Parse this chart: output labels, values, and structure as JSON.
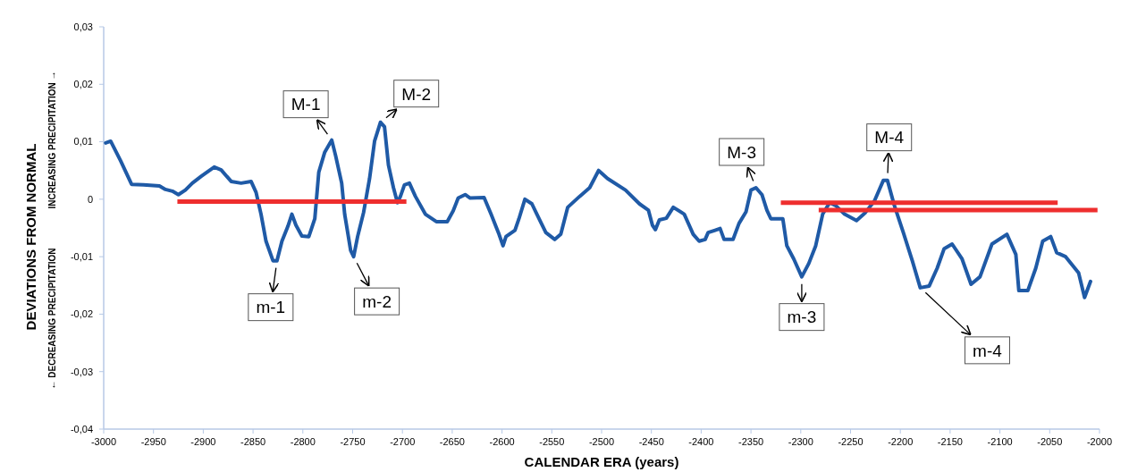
{
  "chart_data": {
    "type": "line",
    "xlabel": "CALENDAR ERA (years)",
    "ylabel": "DEVIATIONS FROM NORMAL",
    "xlim": [
      -3000,
      -2000
    ],
    "xticks": [
      -3000,
      -2950,
      -2900,
      -2850,
      -2800,
      -2750,
      -2700,
      -2650,
      -2600,
      -2550,
      -2500,
      -2450,
      -2400,
      -2350,
      -2300,
      -2250,
      -2200,
      -2150,
      -2100,
      -2050,
      -2000
    ],
    "ylim": [
      -0.04,
      0.03
    ],
    "yticks": [
      {
        "value": -0.04,
        "label": "-0,04"
      },
      {
        "value": -0.03,
        "label": "-0,03"
      },
      {
        "value": -0.02,
        "label": "-0,02"
      },
      {
        "value": -0.01,
        "label": "-0,01"
      },
      0,
      {
        "value": 0.01,
        "label": "0,01"
      },
      {
        "value": 0.02,
        "label": "0,02"
      },
      {
        "value": 0.03,
        "label": "0,03"
      }
    ],
    "grid": false,
    "marker": "none",
    "line_style": "solid",
    "series": [
      {
        "color": "#1f5aa6",
        "x": [
          -2998,
          -2993,
          -2983,
          -2972,
          -2960,
          -2944,
          -2938,
          -2931,
          -2925,
          -2918,
          -2911,
          -2902,
          -2889,
          -2882,
          -2872,
          -2862,
          -2852,
          -2847,
          -2842,
          -2837,
          -2830,
          -2826,
          -2821,
          -2815,
          -2811,
          -2807,
          -2801,
          -2794,
          -2788,
          -2784,
          -2778,
          -2771,
          -2767,
          -2761,
          -2758,
          -2752,
          -2749,
          -2745,
          -2739,
          -2733,
          -2728,
          -2722,
          -2718,
          -2714,
          -2709,
          -2705,
          -2702,
          -2698,
          -2693,
          -2687,
          -2677,
          -2666,
          -2655,
          -2649,
          -2644,
          -2637,
          -2632,
          -2618,
          -2611,
          -2603,
          -2599,
          -2596,
          -2587,
          -2583,
          -2577,
          -2570,
          -2565,
          -2556,
          -2547,
          -2541,
          -2534,
          -2522,
          -2512,
          -2503,
          -2494,
          -2476,
          -2462,
          -2453,
          -2449,
          -2446,
          -2442,
          -2435,
          -2428,
          -2417,
          -2408,
          -2402,
          -2396,
          -2393,
          -2386,
          -2381,
          -2377,
          -2368,
          -2362,
          -2355,
          -2350,
          -2345,
          -2339,
          -2334,
          -2330,
          -2318,
          -2314,
          -2307,
          -2299,
          -2292,
          -2285,
          -2278,
          -2271,
          -2265,
          -2256,
          -2244,
          -2235,
          -2226,
          -2217,
          -2213,
          -2206,
          -2197,
          -2188,
          -2180,
          -2171,
          -2163,
          -2156,
          -2148,
          -2138,
          -2129,
          -2120,
          -2108,
          -2093,
          -2084,
          -2081,
          -2072,
          -2064,
          -2057,
          -2049,
          -2043,
          -2034,
          -2021,
          -2015,
          -2009
        ],
        "values": [
          0.0098,
          0.0101,
          0.0067,
          0.0026,
          0.0025,
          0.0023,
          0.0017,
          0.0014,
          0.0008,
          0.0016,
          0.0028,
          0.004,
          0.0056,
          0.0051,
          0.0031,
          0.0028,
          0.0031,
          0.0012,
          -0.0026,
          -0.0073,
          -0.0107,
          -0.0107,
          -0.0073,
          -0.0047,
          -0.0026,
          -0.0045,
          -0.0064,
          -0.0065,
          -0.0034,
          0.0047,
          0.0082,
          0.0103,
          0.0075,
          0.0028,
          -0.0026,
          -0.0089,
          -0.01,
          -0.0065,
          -0.0023,
          0.0036,
          0.0101,
          0.0134,
          0.0126,
          0.0059,
          0.002,
          -0.0006,
          0.0005,
          0.0025,
          0.0028,
          0.0005,
          -0.0026,
          -0.0039,
          -0.0039,
          -0.002,
          0.0002,
          0.0008,
          0.0002,
          0.0003,
          -0.0026,
          -0.0061,
          -0.0081,
          -0.0065,
          -0.0054,
          -0.0034,
          0.0,
          -0.0008,
          -0.0026,
          -0.0058,
          -0.007,
          -0.0061,
          -0.0014,
          0.0005,
          0.002,
          0.005,
          0.0036,
          0.0016,
          -0.0008,
          -0.0019,
          -0.0045,
          -0.0053,
          -0.0036,
          -0.0033,
          -0.0014,
          -0.0026,
          -0.0061,
          -0.0073,
          -0.007,
          -0.0058,
          -0.0054,
          -0.0051,
          -0.007,
          -0.007,
          -0.0042,
          -0.0022,
          0.0016,
          0.002,
          0.0008,
          -0.0019,
          -0.0034,
          -0.0034,
          -0.0081,
          -0.0104,
          -0.0135,
          -0.0112,
          -0.0081,
          -0.0026,
          -0.0006,
          -0.0011,
          -0.0026,
          -0.0037,
          -0.0023,
          -0.0003,
          0.0033,
          0.0033,
          -0.0011,
          -0.0058,
          -0.0107,
          -0.0154,
          -0.0151,
          -0.012,
          -0.0086,
          -0.0078,
          -0.0104,
          -0.0148,
          -0.0135,
          -0.0078,
          -0.0061,
          -0.0096,
          -0.0159,
          -0.0159,
          -0.012,
          -0.0073,
          -0.0065,
          -0.0093,
          -0.01,
          -0.0128,
          -0.0171,
          -0.0143
        ]
      },
      {
        "color": "#ee2e2e",
        "x": [
          -2926,
          -2696
        ],
        "values": [
          -0.0004,
          -0.0004
        ]
      },
      {
        "color": "#ee2e2e",
        "x": [
          -2320,
          -2042
        ],
        "values": [
          -0.0006,
          -0.0006
        ]
      },
      {
        "color": "#ee2e2e",
        "x": [
          -2282,
          -2002
        ],
        "values": [
          -0.0019,
          -0.0019
        ]
      }
    ],
    "annotations": [
      "INCREASING PRECIPITATION →",
      "← DECREASING PRECIPITATION",
      {
        "text": "M-1",
        "x": -2771,
        "y": 0.0103
      },
      {
        "text": "M-2",
        "x": -2722,
        "y": 0.0134
      },
      {
        "text": "M-3",
        "x": -2345,
        "y": 0.002
      },
      {
        "text": "M-4",
        "x": -2213,
        "y": 0.0033
      },
      {
        "text": "m-1",
        "x": -2826,
        "y": -0.0107
      },
      {
        "text": "m-2",
        "x": -2749,
        "y": -0.01
      },
      {
        "text": "m-3",
        "x": -2299,
        "y": -0.0135
      },
      {
        "text": "m-4",
        "x": -2180,
        "y": -0.0154
      }
    ]
  }
}
